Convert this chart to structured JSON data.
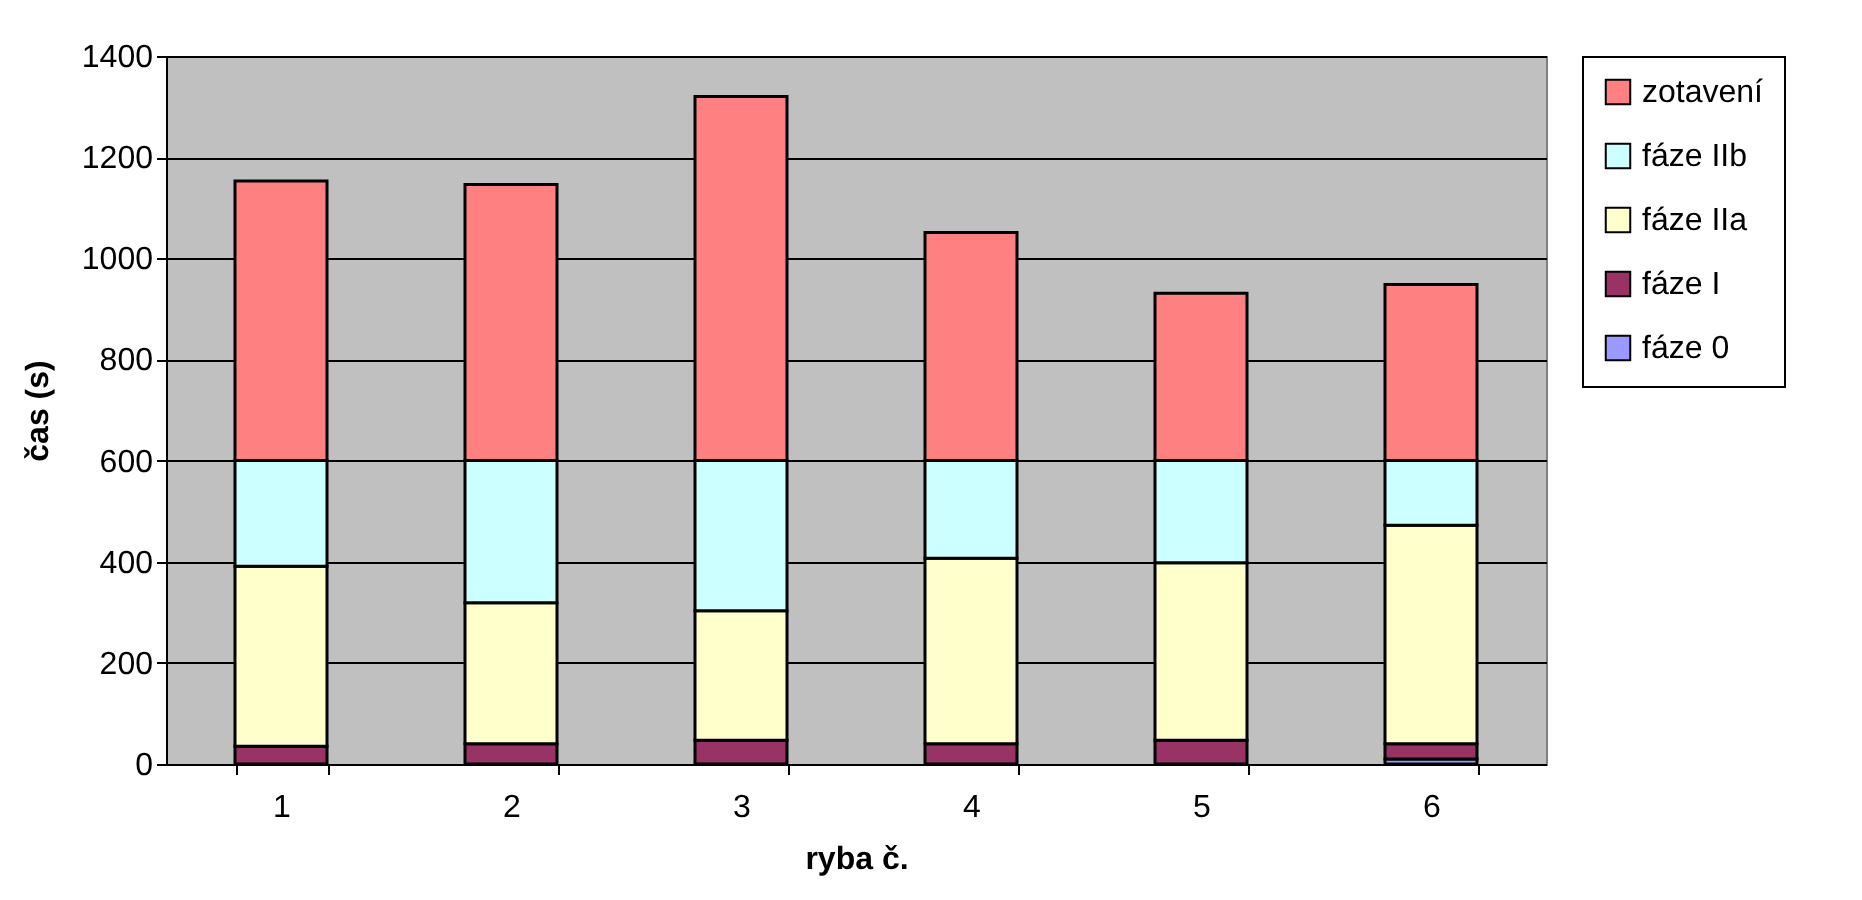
{
  "chart_data": {
    "type": "bar",
    "stacked": true,
    "xlabel": "ryba č.",
    "ylabel": "čas (s)",
    "categories": [
      "1",
      "2",
      "3",
      "4",
      "5",
      "6"
    ],
    "series": [
      {
        "name": "fáze 0",
        "color": "#9999ff",
        "values": [
          null,
          null,
          null,
          null,
          null,
          10
        ]
      },
      {
        "name": "fáze I",
        "color": "#993366",
        "values": [
          35,
          40,
          47,
          40,
          47,
          30
        ]
      },
      {
        "name": "fáze IIa",
        "color": "#ffffcc",
        "values": [
          356,
          279,
          256,
          367,
          351,
          432
        ]
      },
      {
        "name": "fáze IIb",
        "color": "#ccffff",
        "values": [
          209,
          281,
          297,
          193,
          202,
          128
        ]
      },
      {
        "name": "zotavení",
        "color": "#ff8080",
        "values": [
          553,
          546,
          720,
          451,
          331,
          348
        ]
      }
    ],
    "ylim": [
      0,
      1400
    ],
    "yticks": [
      0,
      200,
      400,
      600,
      800,
      1000,
      1200,
      1400
    ],
    "grid": "y",
    "legend": "right"
  }
}
